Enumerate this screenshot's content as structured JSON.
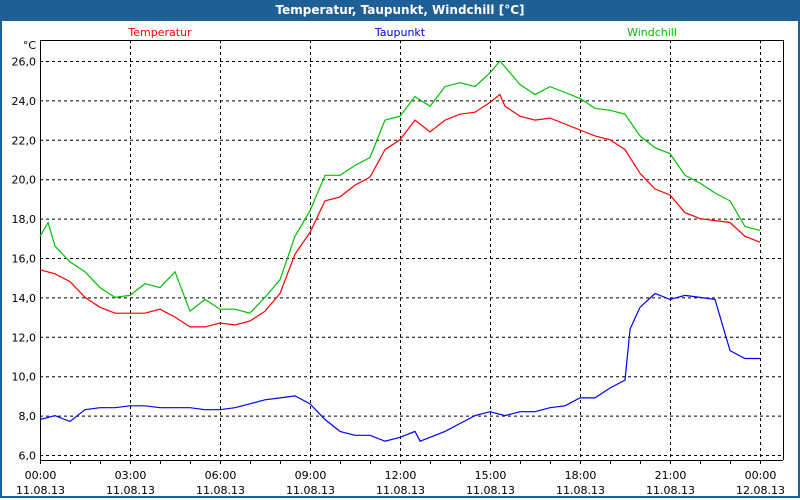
{
  "window": {
    "title": "Temperatur, Taupunkt, Windchill [°C]"
  },
  "chart_data": {
    "type": "line",
    "title": "Temperatur, Taupunkt, Windchill [°C]",
    "ylabel": "°C",
    "xlabel": "",
    "ylim": [
      6,
      26
    ],
    "xlim_hours": [
      0,
      24
    ],
    "grid": true,
    "legend_placement": "top",
    "y_ticks": [
      "6,0",
      "8,0",
      "10,0",
      "12,0",
      "14,0",
      "16,0",
      "18,0",
      "20,0",
      "22,0",
      "24,0",
      "26,0"
    ],
    "x_ticks": [
      {
        "time": "00:00",
        "date": "11.08.13"
      },
      {
        "time": "03:00",
        "date": "11.08.13"
      },
      {
        "time": "06:00",
        "date": "11.08.13"
      },
      {
        "time": "09:00",
        "date": "11.08.13"
      },
      {
        "time": "12:00",
        "date": "11.08.13"
      },
      {
        "time": "15:00",
        "date": "11.08.13"
      },
      {
        "time": "18:00",
        "date": "11.08.13"
      },
      {
        "time": "21:00",
        "date": "11.08.13"
      },
      {
        "time": "00:00",
        "date": "12.08.13"
      }
    ],
    "series": [
      {
        "name": "Temperatur",
        "color": "#ff0000",
        "points": [
          [
            0,
            15.4
          ],
          [
            0.5,
            15.2
          ],
          [
            1,
            14.8
          ],
          [
            1.5,
            14.0
          ],
          [
            2,
            13.5
          ],
          [
            2.5,
            13.2
          ],
          [
            3,
            13.2
          ],
          [
            3.5,
            13.2
          ],
          [
            4,
            13.4
          ],
          [
            4.5,
            13.0
          ],
          [
            5,
            12.5
          ],
          [
            5.5,
            12.5
          ],
          [
            6,
            12.7
          ],
          [
            6.5,
            12.6
          ],
          [
            7,
            12.8
          ],
          [
            7.5,
            13.3
          ],
          [
            8,
            14.2
          ],
          [
            8.5,
            16.2
          ],
          [
            9,
            17.3
          ],
          [
            9.5,
            18.9
          ],
          [
            10,
            19.1
          ],
          [
            10.5,
            19.7
          ],
          [
            11,
            20.1
          ],
          [
            11.5,
            21.5
          ],
          [
            12,
            22.0
          ],
          [
            12.5,
            23.0
          ],
          [
            13,
            22.4
          ],
          [
            13.5,
            23.0
          ],
          [
            14,
            23.3
          ],
          [
            14.5,
            23.4
          ],
          [
            15,
            23.9
          ],
          [
            15.33,
            24.3
          ],
          [
            15.5,
            23.7
          ],
          [
            16,
            23.2
          ],
          [
            16.5,
            23.0
          ],
          [
            17,
            23.1
          ],
          [
            17.5,
            22.8
          ],
          [
            18,
            22.5
          ],
          [
            18.5,
            22.2
          ],
          [
            19,
            22.0
          ],
          [
            19.5,
            21.5
          ],
          [
            20,
            20.3
          ],
          [
            20.5,
            19.5
          ],
          [
            21,
            19.2
          ],
          [
            21.5,
            18.3
          ],
          [
            22,
            18.0
          ],
          [
            22.5,
            17.9
          ],
          [
            23,
            17.8
          ],
          [
            23.5,
            17.1
          ],
          [
            24,
            16.8
          ]
        ]
      },
      {
        "name": "Taupunkt",
        "color": "#0000ff",
        "points": [
          [
            0,
            7.8
          ],
          [
            0.5,
            8.0
          ],
          [
            1,
            7.7
          ],
          [
            1.5,
            8.3
          ],
          [
            2,
            8.4
          ],
          [
            2.5,
            8.4
          ],
          [
            3,
            8.5
          ],
          [
            3.5,
            8.5
          ],
          [
            4,
            8.4
          ],
          [
            4.5,
            8.4
          ],
          [
            5,
            8.4
          ],
          [
            5.5,
            8.3
          ],
          [
            6,
            8.3
          ],
          [
            6.5,
            8.4
          ],
          [
            7,
            8.6
          ],
          [
            7.5,
            8.8
          ],
          [
            8,
            8.9
          ],
          [
            8.5,
            9.0
          ],
          [
            9,
            8.6
          ],
          [
            9.5,
            7.8
          ],
          [
            10,
            7.2
          ],
          [
            10.5,
            7.0
          ],
          [
            11,
            7.0
          ],
          [
            11.5,
            6.7
          ],
          [
            12,
            6.9
          ],
          [
            12.5,
            7.2
          ],
          [
            12.67,
            6.7
          ],
          [
            13,
            6.9
          ],
          [
            13.5,
            7.2
          ],
          [
            14,
            7.6
          ],
          [
            14.5,
            8.0
          ],
          [
            15,
            8.2
          ],
          [
            15.5,
            8.0
          ],
          [
            16,
            8.2
          ],
          [
            16.5,
            8.2
          ],
          [
            17,
            8.4
          ],
          [
            17.5,
            8.5
          ],
          [
            18,
            8.9
          ],
          [
            18.5,
            8.9
          ],
          [
            19,
            9.4
          ],
          [
            19.5,
            9.8
          ],
          [
            19.67,
            12.4
          ],
          [
            20,
            13.5
          ],
          [
            20.5,
            14.2
          ],
          [
            21,
            13.9
          ],
          [
            21.5,
            14.1
          ],
          [
            22,
            14.0
          ],
          [
            22.5,
            13.9
          ],
          [
            23,
            11.3
          ],
          [
            23.5,
            10.9
          ],
          [
            24,
            10.9
          ]
        ]
      },
      {
        "name": "Windchill",
        "color": "#00c000",
        "points": [
          [
            0,
            17.1
          ],
          [
            0.27,
            17.8
          ],
          [
            0.5,
            16.6
          ],
          [
            1,
            15.8
          ],
          [
            1.5,
            15.3
          ],
          [
            2,
            14.5
          ],
          [
            2.5,
            14.0
          ],
          [
            3,
            14.1
          ],
          [
            3.5,
            14.7
          ],
          [
            4,
            14.5
          ],
          [
            4.5,
            15.3
          ],
          [
            5,
            13.3
          ],
          [
            5.5,
            13.9
          ],
          [
            6,
            13.4
          ],
          [
            6.5,
            13.4
          ],
          [
            7,
            13.2
          ],
          [
            7.5,
            14.0
          ],
          [
            8,
            14.9
          ],
          [
            8.5,
            17.1
          ],
          [
            9,
            18.4
          ],
          [
            9.5,
            20.2
          ],
          [
            10,
            20.2
          ],
          [
            10.5,
            20.7
          ],
          [
            11,
            21.1
          ],
          [
            11.5,
            23.0
          ],
          [
            12,
            23.2
          ],
          [
            12.5,
            24.2
          ],
          [
            13,
            23.7
          ],
          [
            13.5,
            24.7
          ],
          [
            14,
            24.9
          ],
          [
            14.5,
            24.7
          ],
          [
            15,
            25.4
          ],
          [
            15.33,
            26.0
          ],
          [
            16,
            24.8
          ],
          [
            16.5,
            24.3
          ],
          [
            17,
            24.7
          ],
          [
            17.5,
            24.4
          ],
          [
            18,
            24.1
          ],
          [
            18.5,
            23.6
          ],
          [
            19,
            23.5
          ],
          [
            19.5,
            23.3
          ],
          [
            20,
            22.2
          ],
          [
            20.5,
            21.6
          ],
          [
            21,
            21.3
          ],
          [
            21.5,
            20.2
          ],
          [
            22,
            19.8
          ],
          [
            22.5,
            19.3
          ],
          [
            23,
            18.9
          ],
          [
            23.5,
            17.6
          ],
          [
            24,
            17.4
          ]
        ]
      }
    ]
  }
}
